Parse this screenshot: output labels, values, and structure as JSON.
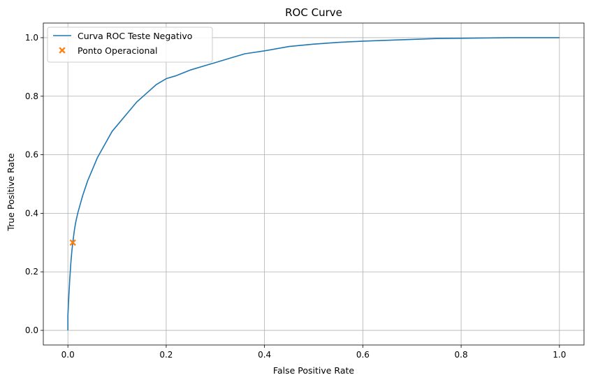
{
  "chart_data": {
    "type": "line",
    "title": "ROC Curve",
    "xlabel": "False Positive Rate",
    "ylabel": "True Positive Rate",
    "xlim": [
      -0.05,
      1.05
    ],
    "ylim": [
      -0.05,
      1.05
    ],
    "xticks": [
      0.0,
      0.2,
      0.4,
      0.6,
      0.8,
      1.0
    ],
    "xtick_labels": [
      "0.0",
      "0.2",
      "0.4",
      "0.6",
      "0.8",
      "1.0"
    ],
    "yticks": [
      0.0,
      0.2,
      0.4,
      0.6,
      0.8,
      1.0
    ],
    "ytick_labels": [
      "0.0",
      "0.2",
      "0.4",
      "0.6",
      "0.8",
      "1.0"
    ],
    "grid": true,
    "legend_position": "top-left",
    "series": [
      {
        "name": "Curva ROC Teste Negativo",
        "kind": "line",
        "color": "#1f77b4",
        "x": [
          0.0,
          0.0,
          0.002,
          0.004,
          0.006,
          0.008,
          0.01,
          0.013,
          0.016,
          0.02,
          0.025,
          0.03,
          0.04,
          0.05,
          0.06,
          0.07,
          0.08,
          0.09,
          0.1,
          0.12,
          0.14,
          0.16,
          0.18,
          0.2,
          0.22,
          0.25,
          0.28,
          0.3,
          0.33,
          0.36,
          0.4,
          0.45,
          0.5,
          0.55,
          0.6,
          0.65,
          0.7,
          0.75,
          0.8,
          0.9,
          1.0
        ],
        "y": [
          0.0,
          0.05,
          0.12,
          0.18,
          0.23,
          0.27,
          0.3,
          0.34,
          0.37,
          0.4,
          0.43,
          0.46,
          0.51,
          0.55,
          0.59,
          0.62,
          0.65,
          0.68,
          0.7,
          0.74,
          0.78,
          0.81,
          0.84,
          0.86,
          0.87,
          0.89,
          0.905,
          0.915,
          0.93,
          0.945,
          0.955,
          0.97,
          0.978,
          0.984,
          0.988,
          0.991,
          0.994,
          0.997,
          0.998,
          1.0,
          1.0
        ]
      },
      {
        "name": "Ponto Operacional",
        "kind": "marker",
        "marker": "X",
        "color": "#ff7f0e",
        "x": [
          0.01
        ],
        "y": [
          0.3
        ]
      }
    ]
  }
}
